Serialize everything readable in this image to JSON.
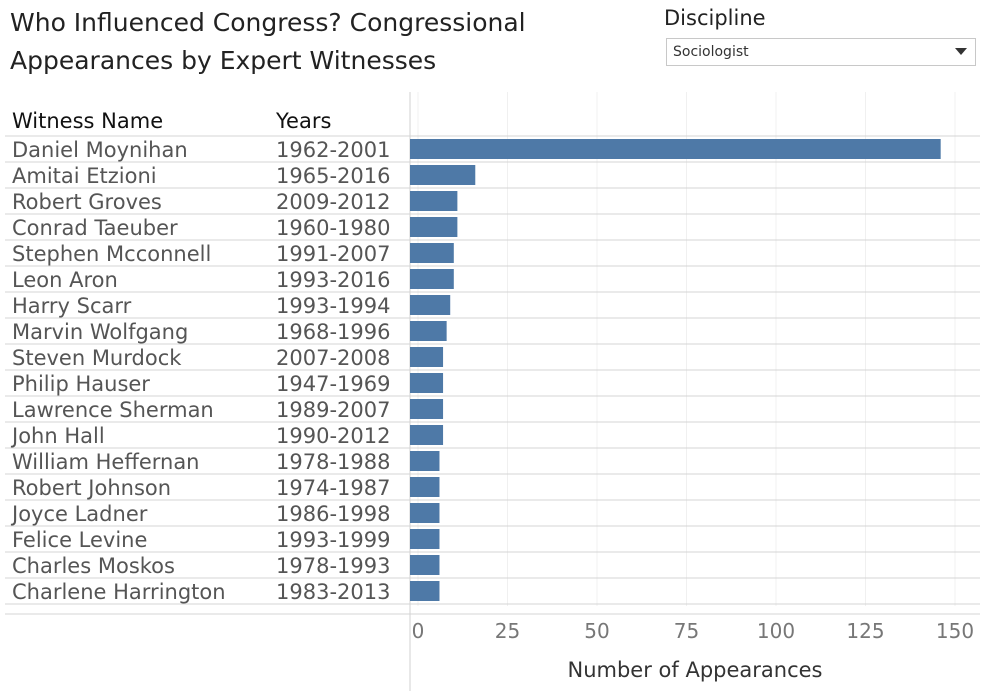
{
  "title_line1": "Who Influenced Congress? Congressional",
  "title_line2": "Appearances by Expert Witnesses",
  "filter": {
    "label": "Discipline",
    "selected": "Sociologist",
    "arrow_icon": "triangle-down"
  },
  "table_headers": {
    "name": "Witness Name",
    "years": "Years"
  },
  "chart_data": {
    "type": "bar",
    "orientation": "horizontal",
    "categories": [
      "Daniel Moynihan",
      "Amitai Etzioni",
      "Robert Groves",
      "Conrad Taeuber",
      "Stephen Mcconnell",
      "Leon Aron",
      "Harry Scarr",
      "Marvin Wolfgang",
      "Steven Murdock",
      "Philip Hauser",
      "Lawrence Sherman",
      "John Hall",
      "William Heffernan",
      "Robert Johnson",
      "Joyce Ladner",
      "Felice Levine",
      "Charles Moskos",
      "Charlene Harrington"
    ],
    "years": [
      "1962-2001",
      "1965-2016",
      "2009-2012",
      "1960-1980",
      "1991-2007",
      "1993-2016",
      "1993-1994",
      "1968-1996",
      "2007-2008",
      "1947-1969",
      "1989-2007",
      "1990-2012",
      "1978-1988",
      "1974-1987",
      "1986-1998",
      "1993-1999",
      "1978-1993",
      "1983-2013"
    ],
    "values": [
      146,
      16,
      11,
      11,
      10,
      10,
      9,
      8,
      7,
      7,
      7,
      7,
      6,
      6,
      6,
      6,
      6,
      6
    ],
    "xlabel": "Number of Appearances",
    "xlim": [
      0,
      150
    ],
    "xticks": [
      0,
      25,
      50,
      75,
      100,
      125,
      150
    ],
    "bar_color": "#4e79a7",
    "grid": true
  }
}
